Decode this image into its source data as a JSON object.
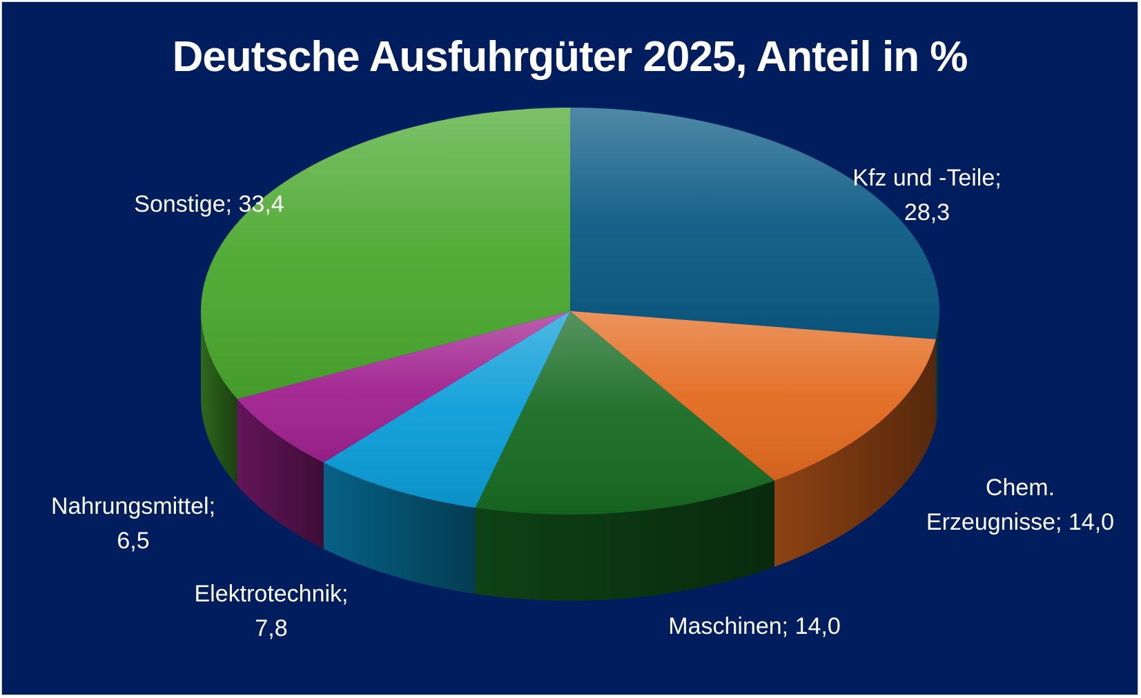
{
  "chart_data": {
    "type": "pie",
    "title": "Deutsche Ausfuhrgüter 2025, Anteil in %",
    "slices": [
      {
        "name": "Kfz und -Teile",
        "value": 28.3,
        "label_lines": [
          "Kfz und -Teile;",
          "28,3"
        ],
        "color": "#0a5a84"
      },
      {
        "name": "Chem. Erzeugnisse",
        "value": 14.0,
        "label_lines": [
          "Chem.",
          "Erzeugnisse; 14,0"
        ],
        "color": "#e36a1f"
      },
      {
        "name": "Maschinen",
        "value": 14.0,
        "label_lines": [
          "Maschinen; 14,0"
        ],
        "color": "#176b22"
      },
      {
        "name": "Elektrotechnik",
        "value": 7.8,
        "label_lines": [
          "Elektrotechnik;",
          "7,8"
        ],
        "color": "#0a9dd8"
      },
      {
        "name": "Nahrungsmittel",
        "value": 6.5,
        "label_lines": [
          "Nahrungsmittel;",
          "6,5"
        ],
        "color": "#a0228f"
      },
      {
        "name": "Sonstige",
        "value": 33.4,
        "label_lines": [
          "Sonstige; 33,4"
        ],
        "color": "#4aa82e"
      }
    ],
    "background": "#001e5e",
    "legend": "none"
  }
}
